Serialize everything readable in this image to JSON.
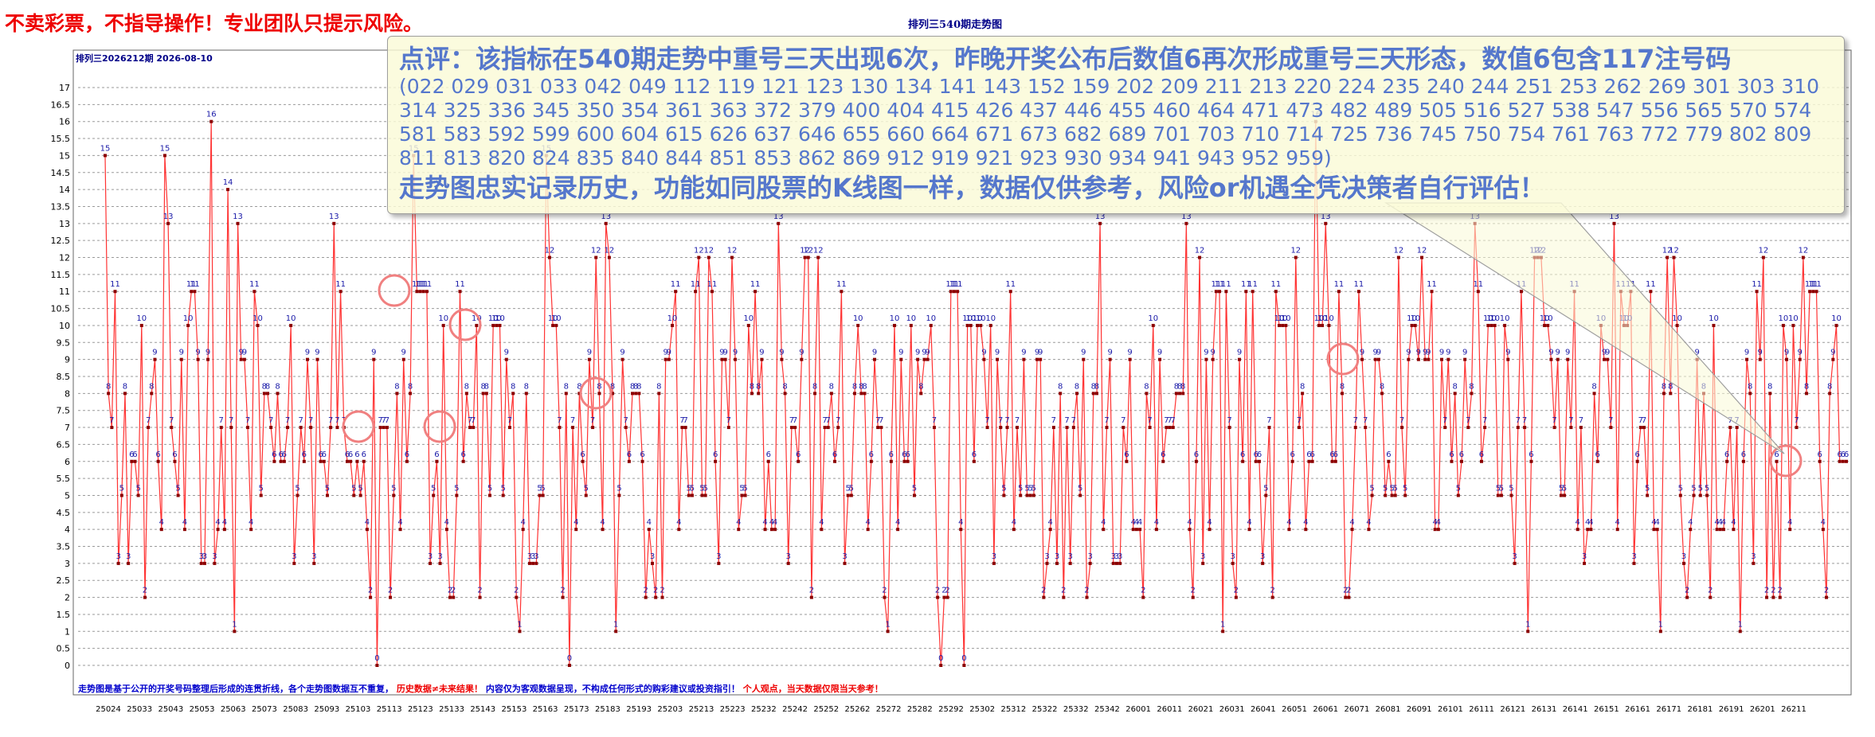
{
  "header": {
    "disclaimer": "不卖彩票，不指导操作！专业团队只提示风险。",
    "chart_title": "排列三540期走势图",
    "period_label": "排列三2026212期  2026-08-10"
  },
  "note": {
    "headline": "点评：该指标在540期走势中重号三天出现6次，昨晚开奖公布后数值6再次形成重号三天形态，数值6包含117注号码",
    "codes": "(022 029 031 033 042 049 112 119 121 123 130 134 141 143 152 159 202 209 211 213 220 224 235 240 244 251 253 262 269 301 303 310 314 325 336 345 350 354 361 363 372 379 400 404 415 426 437 446 455 460 464 471 473 482 489 505 516 527 538 547 556 565 570 574 581 583 592 599 600 604 615 626 637 646 655 660 664 671 673 682 689 701 703 710 714 725 736 745 750 754 761 763 772 779 802 809 811 813 820 824 835 840 844 851 853 862 869 912 919 921 923 930 934 941 943 952 959)",
    "footer": "走势图忠实记录历史，功能如同股票的K线图一样，数据仅供参考，风险or机遇全凭决策者自行评估！"
  },
  "footer_notes": {
    "part1": "走势图是基于公开的开奖号码整理后形成的连贯折线，各个走势图数据互不重复，",
    "part2": "历史数据≠未来结果！",
    "part3": "内容仅为客观数据呈现，不构成任何形式的购彩建议或投资指引！",
    "part4": "个人观点，当天数据仅限当天参考！"
  },
  "colors": {
    "line": "#ff3333",
    "marker": "#8b0000",
    "data_label": "#1a1aa8",
    "highlight_circle": "#f08080",
    "note_text": "#5577cc",
    "disclaimer": "#ee0000",
    "title": "#000088",
    "footer_red": "#ee0000",
    "footer_blue": "#0000cc"
  },
  "chart_data": {
    "type": "line",
    "ylim": [
      0,
      17
    ],
    "y_ticks": [
      "0",
      "0.5",
      "1",
      "1.5",
      "2",
      "2.5",
      "3",
      "3.5",
      "4",
      "4.5",
      "5",
      "5.5",
      "6",
      "6.5",
      "7",
      "7.5",
      "8",
      "8.5",
      "9",
      "9.5",
      "10",
      "10.5",
      "11",
      "11.5",
      "12",
      "12.5",
      "13",
      "13.5",
      "14",
      "14.5",
      "15",
      "15.5",
      "16",
      "16.5",
      "17"
    ],
    "x_ticks": [
      "25024",
      "25033",
      "25043",
      "25053",
      "25063",
      "25073",
      "25083",
      "25093",
      "25103",
      "25113",
      "25123",
      "25133",
      "25143",
      "25153",
      "25163",
      "25173",
      "25183",
      "25193",
      "25203",
      "25213",
      "25223",
      "25232",
      "25242",
      "25252",
      "25262",
      "25272",
      "25282",
      "25292",
      "25302",
      "25312",
      "25322",
      "25332",
      "25342",
      "26001",
      "26011",
      "26021",
      "26031",
      "26041",
      "26051",
      "26061",
      "26071",
      "26081",
      "26091",
      "26101",
      "26111",
      "26121",
      "26131",
      "26141",
      "26151",
      "26161",
      "26171",
      "26181",
      "26191",
      "26201",
      "26211"
    ],
    "grid": true,
    "values": [
      15,
      8,
      7,
      11,
      3,
      5,
      8,
      3,
      6,
      6,
      5,
      10,
      2,
      7,
      8,
      9,
      6,
      4,
      15,
      13,
      7,
      6,
      5,
      9,
      4,
      10,
      11,
      11,
      9,
      3,
      3,
      9,
      16,
      3,
      4,
      7,
      4,
      14,
      7,
      1,
      13,
      9,
      9,
      7,
      4,
      11,
      10,
      5,
      8,
      8,
      7,
      6,
      8,
      6,
      6,
      7,
      10,
      3,
      5,
      7,
      6,
      9,
      7,
      3,
      9,
      6,
      6,
      5,
      7,
      13,
      7,
      11,
      7,
      6,
      6,
      5,
      6,
      5,
      6,
      4,
      2,
      9,
      0,
      7,
      7,
      7,
      2,
      5,
      8,
      4,
      9,
      6,
      8,
      15,
      11,
      11,
      11,
      11,
      3,
      5,
      6,
      3,
      10,
      4,
      2,
      2,
      5,
      11,
      6,
      8,
      7,
      7,
      10,
      2,
      8,
      8,
      5,
      10,
      10,
      10,
      5,
      9,
      7,
      8,
      2,
      1,
      4,
      8,
      3,
      3,
      3,
      5,
      5,
      15,
      12,
      10,
      10,
      7,
      2,
      8,
      0,
      7,
      4,
      8,
      6,
      5,
      9,
      7,
      12,
      8,
      4,
      13,
      12,
      8,
      1,
      5,
      9,
      7,
      6,
      8,
      8,
      8,
      6,
      2,
      4,
      3,
      2,
      8,
      2,
      9,
      9,
      10,
      11,
      4,
      7,
      7,
      5,
      5,
      11,
      12,
      5,
      5,
      12,
      11,
      6,
      3,
      9,
      9,
      7,
      12,
      9,
      4,
      5,
      5,
      10,
      8,
      11,
      8,
      9,
      4,
      6,
      4,
      4,
      13,
      9,
      8,
      3,
      7,
      7,
      6,
      9,
      12,
      12,
      2,
      8,
      12,
      4,
      7,
      7,
      8,
      6,
      7,
      11,
      3,
      5,
      5,
      8,
      10,
      8,
      8,
      4,
      6,
      9,
      7,
      7,
      2,
      1,
      6,
      10,
      4,
      9,
      6,
      6,
      10,
      5,
      9,
      8,
      9,
      9,
      10,
      7,
      2,
      0,
      2,
      2,
      11,
      11,
      11,
      4,
      0,
      10,
      10,
      6,
      10,
      10,
      9,
      7,
      10,
      3,
      9,
      7,
      5,
      7,
      11,
      4,
      7,
      5,
      9,
      5,
      5,
      5,
      9,
      9,
      2,
      3,
      4,
      7,
      3,
      8,
      2,
      7,
      3,
      7,
      8,
      5,
      9,
      2,
      3,
      8,
      8,
      13,
      4,
      7,
      9,
      3,
      3,
      3,
      7,
      6,
      9,
      4,
      4,
      4,
      2,
      8,
      7,
      10,
      4,
      9,
      6,
      7,
      7,
      7,
      8,
      8,
      8,
      13,
      4,
      2,
      6,
      12,
      3,
      9,
      4,
      9,
      11,
      11,
      1,
      11,
      7,
      3,
      2,
      9,
      6,
      11,
      4,
      11,
      6,
      6,
      3,
      5,
      7,
      2,
      11,
      10,
      10,
      10,
      4,
      6,
      12,
      7,
      8,
      4,
      6,
      6,
      16,
      10,
      10,
      13,
      10,
      6,
      6,
      11,
      8,
      2,
      2,
      4,
      7,
      11,
      9,
      7,
      4,
      5,
      9,
      9,
      8,
      5,
      6,
      5,
      5,
      12,
      7,
      5,
      9,
      10,
      10,
      9,
      12,
      9,
      9,
      11,
      4,
      4,
      9,
      7,
      9,
      6,
      8,
      5,
      6,
      9,
      7,
      8,
      13,
      11,
      6,
      7,
      10,
      10,
      10,
      5,
      5,
      10,
      9,
      5,
      3,
      7,
      11,
      7,
      1,
      6,
      12,
      12,
      12,
      10,
      10,
      9,
      7,
      9,
      5,
      5,
      9,
      7,
      11,
      4,
      7,
      3,
      4,
      4,
      8,
      6,
      10,
      9,
      9,
      7,
      13,
      4,
      11,
      10,
      10,
      11,
      3,
      6,
      7,
      7,
      5,
      11,
      4,
      4,
      1,
      8,
      12,
      8,
      12,
      10,
      5,
      3,
      2,
      4,
      5,
      9,
      5,
      8,
      5,
      2,
      10,
      4,
      4,
      4,
      6,
      7,
      4,
      7,
      1,
      6,
      9,
      8,
      3,
      11,
      9,
      12,
      2,
      8,
      2,
      6,
      2,
      10,
      9,
      4,
      10,
      7,
      9,
      12,
      8,
      11,
      11,
      11,
      6,
      4,
      2,
      8,
      9,
      10,
      6,
      6,
      6
    ]
  }
}
